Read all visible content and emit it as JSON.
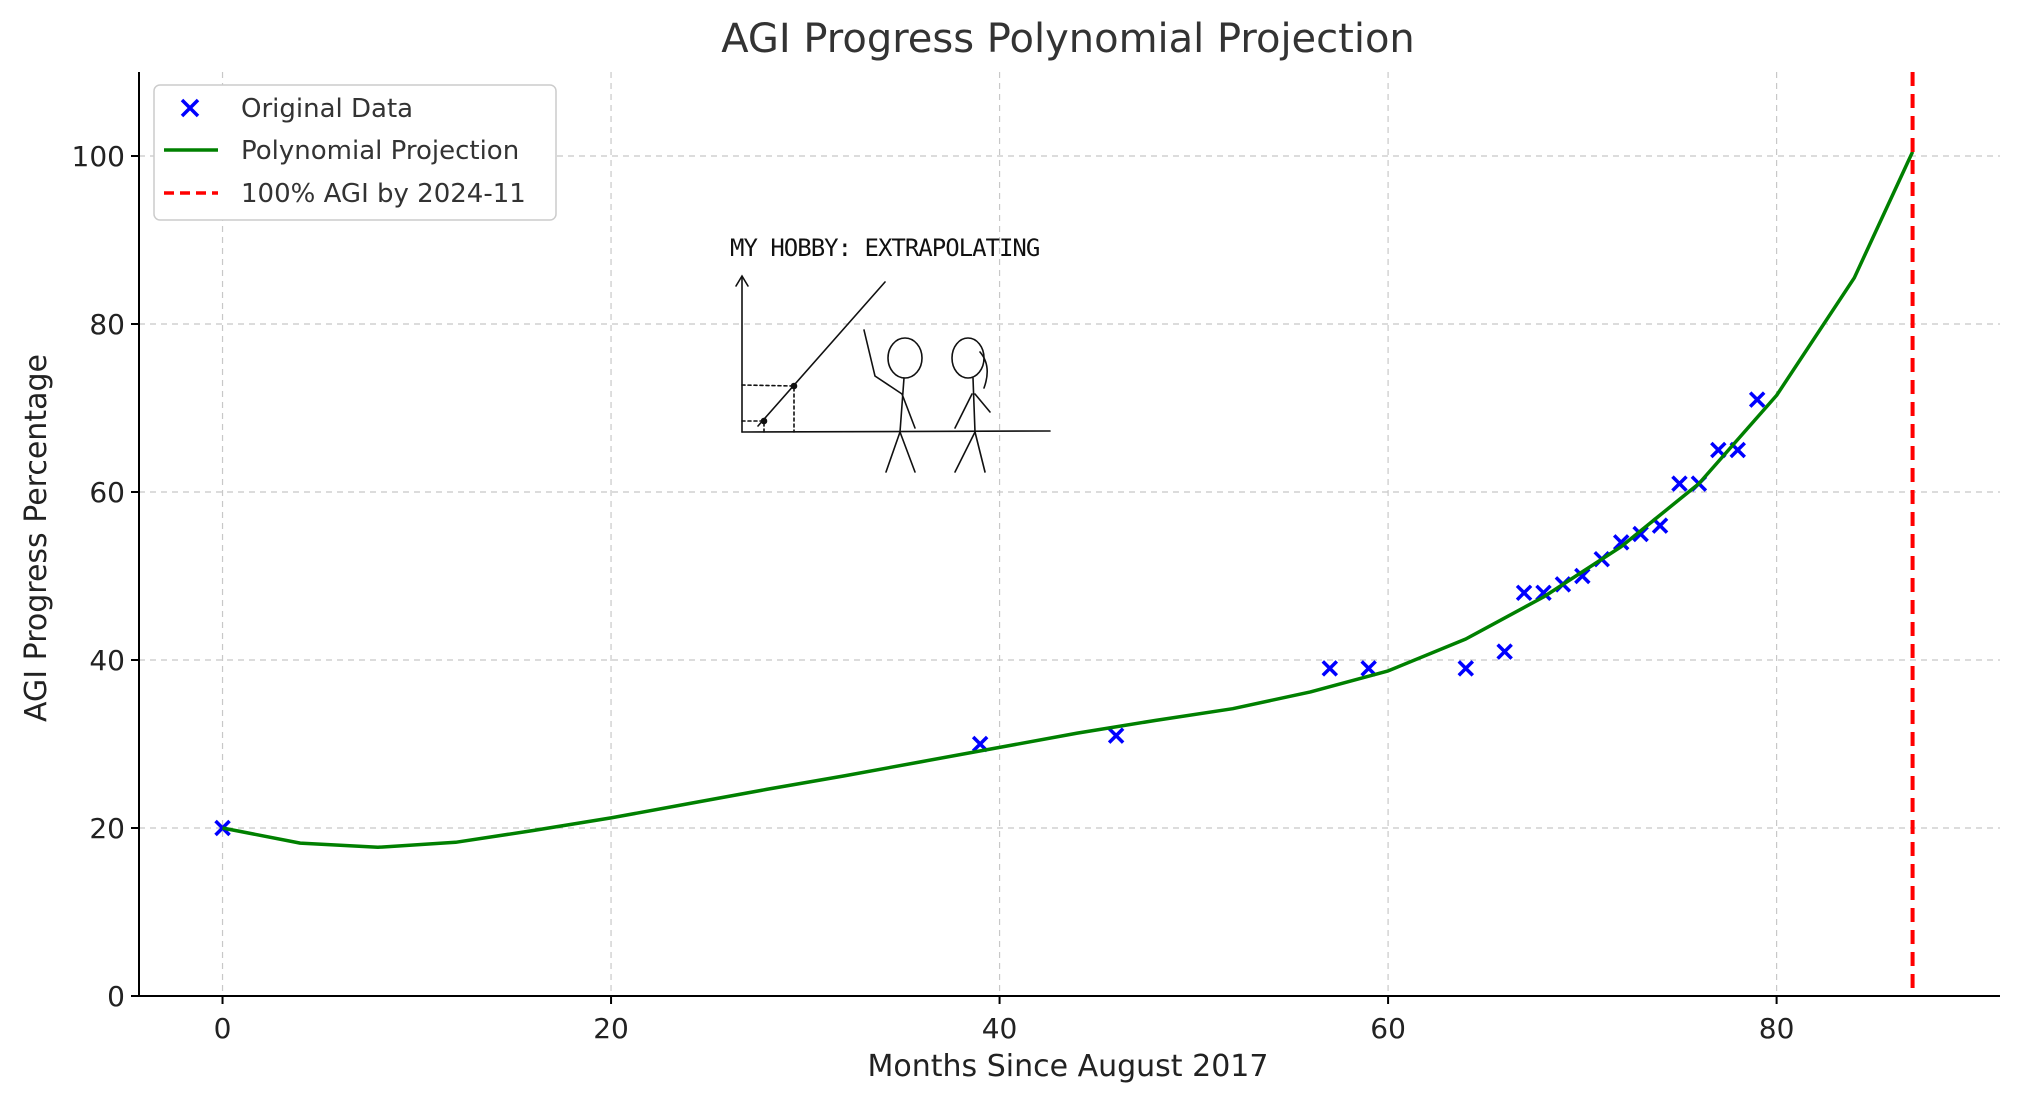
{
  "chart_data": {
    "type": "scatter",
    "title": "AGI Progress Polynomial Projection",
    "xlabel": "Months Since August 2017",
    "ylabel": "AGI Progress Percentage",
    "xlim": [
      -4.3,
      91.5
    ],
    "ylim": [
      0,
      110
    ],
    "xticks": [
      0,
      20,
      40,
      60,
      80
    ],
    "yticks": [
      0,
      20,
      40,
      60,
      80,
      100
    ],
    "grid": true,
    "legend_position": "top-left",
    "series": [
      {
        "name": "Original Data",
        "kind": "scatter",
        "marker": "x",
        "color": "#0000ff",
        "points": [
          [
            0,
            20
          ],
          [
            39,
            30
          ],
          [
            46,
            31
          ],
          [
            57,
            39
          ],
          [
            59,
            39
          ],
          [
            64,
            39
          ],
          [
            66,
            41
          ],
          [
            67,
            48
          ],
          [
            68,
            48
          ],
          [
            69,
            49
          ],
          [
            70,
            50
          ],
          [
            71,
            52
          ],
          [
            72,
            54
          ],
          [
            73,
            55
          ],
          [
            74,
            56
          ],
          [
            75,
            61
          ],
          [
            76,
            61
          ],
          [
            77,
            65
          ],
          [
            78,
            65
          ],
          [
            79,
            71
          ]
        ]
      },
      {
        "name": "Polynomial Projection",
        "kind": "line",
        "color": "#008000",
        "points": [
          [
            0,
            20
          ],
          [
            4,
            18.2
          ],
          [
            8,
            17.7
          ],
          [
            12,
            18.3
          ],
          [
            16,
            19.7
          ],
          [
            20,
            21.2
          ],
          [
            24,
            22.9
          ],
          [
            28,
            24.6
          ],
          [
            32,
            26.2
          ],
          [
            36,
            27.9
          ],
          [
            40,
            29.6
          ],
          [
            44,
            31.3
          ],
          [
            48,
            32.8
          ],
          [
            52,
            34.2
          ],
          [
            56,
            36.2
          ],
          [
            60,
            38.7
          ],
          [
            64,
            42.5
          ],
          [
            68,
            47.5
          ],
          [
            72,
            53.5
          ],
          [
            76,
            61.0
          ],
          [
            80,
            71.5
          ],
          [
            84,
            85.5
          ],
          [
            87,
            100.5
          ]
        ]
      },
      {
        "name": "100% AGI by 2024-11",
        "kind": "vline",
        "x": 87,
        "color": "#ff0000",
        "dash": "dashed"
      }
    ],
    "inset_comic_text": "MY HOBBY: EXTRAPOLATING"
  }
}
